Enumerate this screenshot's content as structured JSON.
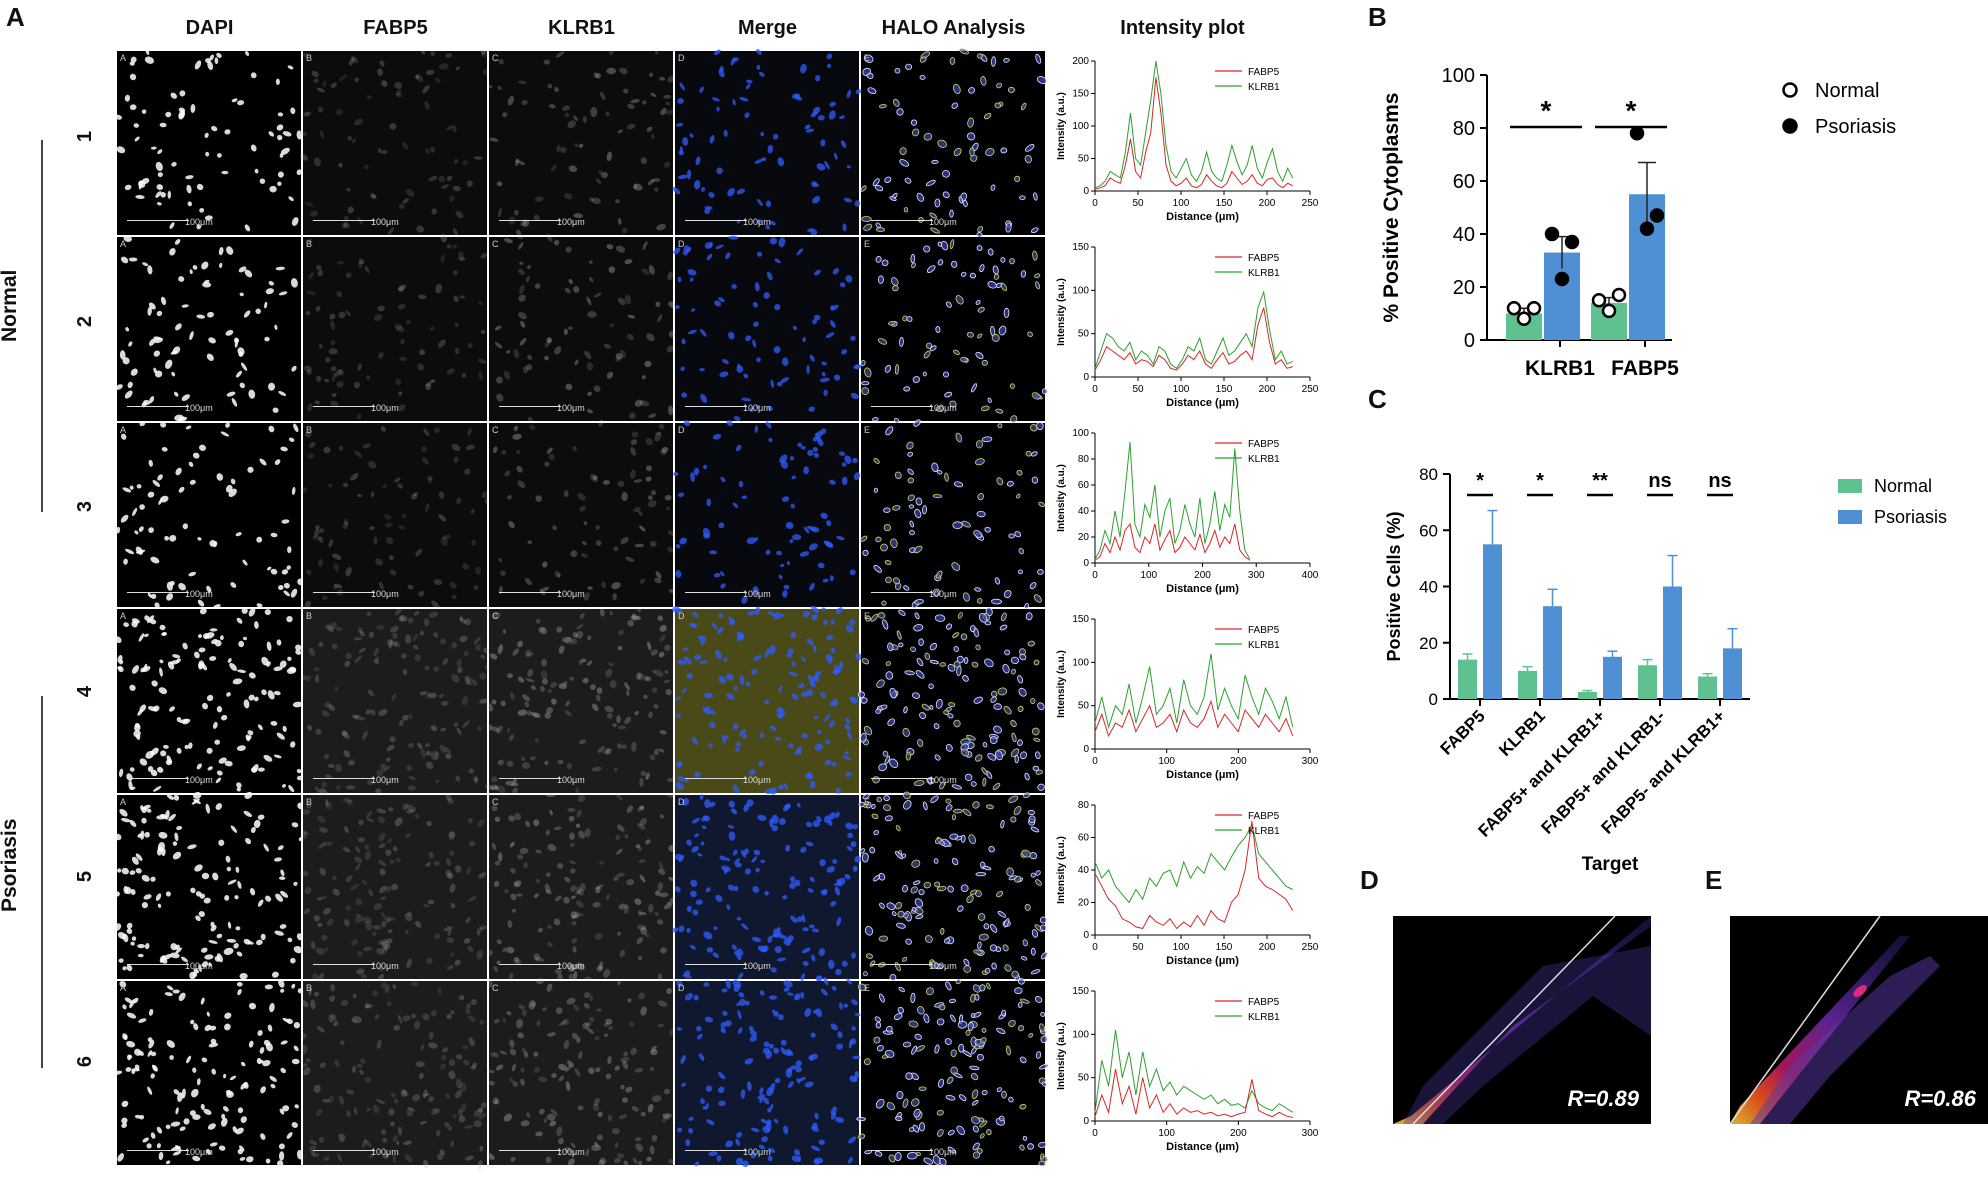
{
  "panel_letters": {
    "a": "A",
    "b": "B",
    "c": "C",
    "d": "D",
    "e": "E"
  },
  "panel_a": {
    "column_headers": [
      "DAPI",
      "FABP5",
      "KLRB1",
      "Merge",
      "HALO Analysis",
      "Intensity plot"
    ],
    "row_labels": [
      "1",
      "2",
      "3",
      "4",
      "5",
      "6"
    ],
    "group_labels": {
      "normal": "Normal",
      "psoriasis": "Psoriasis"
    },
    "tile_corner_letters": [
      "A",
      "B",
      "C",
      "D",
      "E"
    ],
    "scale_bar_label": "100μm",
    "intensity_plots": [
      {
        "ylabel": "Intensity (a.u.)",
        "xlabel": "Distance (μm)",
        "xlim": [
          0,
          250
        ],
        "ylim": [
          0,
          200
        ],
        "xticks": [
          0,
          50,
          100,
          150,
          200,
          250
        ],
        "yticks": [
          0,
          50,
          100,
          150,
          200
        ],
        "series": [
          {
            "name": "FABP5",
            "color": "#d62728",
            "values": [
              3,
              5,
              8,
              20,
              15,
              12,
              40,
              80,
              30,
              20,
              60,
              90,
              175,
              120,
              40,
              15,
              8,
              12,
              20,
              8,
              5,
              10,
              25,
              15,
              8,
              5,
              12,
              30,
              20,
              10,
              15,
              25,
              12,
              8,
              18,
              20,
              10,
              5,
              12,
              8
            ]
          },
          {
            "name": "KLRB1",
            "color": "#2ca02c",
            "values": [
              5,
              8,
              15,
              30,
              25,
              20,
              60,
              120,
              50,
              40,
              90,
              140,
              215,
              150,
              70,
              30,
              20,
              35,
              50,
              25,
              15,
              30,
              60,
              30,
              20,
              15,
              40,
              70,
              45,
              25,
              40,
              70,
              35,
              20,
              45,
              65,
              30,
              15,
              35,
              20
            ]
          }
        ]
      },
      {
        "ylabel": "Intensity (a.u.)",
        "xlabel": "Distance (μm)",
        "xlim": [
          0,
          250
        ],
        "ylim": [
          0,
          150
        ],
        "xticks": [
          0,
          50,
          100,
          150,
          200,
          250
        ],
        "yticks": [
          0,
          50,
          100,
          150
        ],
        "series": [
          {
            "name": "FABP5",
            "color": "#d62728",
            "values": [
              8,
              20,
              35,
              30,
              25,
              20,
              28,
              15,
              20,
              18,
              12,
              25,
              20,
              10,
              8,
              15,
              25,
              20,
              30,
              15,
              10,
              20,
              28,
              15,
              18,
              25,
              30,
              20,
              60,
              80,
              40,
              15,
              20,
              10,
              12
            ]
          },
          {
            "name": "KLRB1",
            "color": "#2ca02c",
            "values": [
              10,
              30,
              50,
              45,
              35,
              30,
              40,
              20,
              30,
              25,
              15,
              35,
              30,
              15,
              10,
              20,
              35,
              30,
              45,
              20,
              15,
              30,
              45,
              25,
              30,
              40,
              50,
              35,
              80,
              98,
              55,
              20,
              30,
              15,
              18
            ]
          }
        ]
      },
      {
        "ylabel": "Intensity (a.u.)",
        "xlabel": "Distance (μm)",
        "xlim": [
          0,
          400
        ],
        "ylim": [
          0,
          100
        ],
        "xticks": [
          0,
          100,
          200,
          300,
          400
        ],
        "yticks": [
          0,
          20,
          40,
          60,
          80,
          100
        ],
        "series": [
          {
            "name": "FABP5",
            "color": "#d62728",
            "values": [
              2,
              5,
              15,
              8,
              20,
              10,
              25,
              30,
              12,
              8,
              20,
              15,
              30,
              10,
              18,
              25,
              8,
              12,
              20,
              15,
              10,
              22,
              8,
              15,
              25,
              12,
              20,
              15,
              30,
              10,
              5,
              2
            ]
          },
          {
            "name": "KLRB1",
            "color": "#2ca02c",
            "values": [
              3,
              10,
              25,
              15,
              40,
              20,
              55,
              93,
              30,
              20,
              45,
              35,
              60,
              20,
              40,
              50,
              15,
              25,
              45,
              30,
              20,
              50,
              15,
              30,
              55,
              25,
              45,
              35,
              88,
              40,
              10,
              3
            ]
          }
        ]
      },
      {
        "ylabel": "Intensity (a.u.)",
        "xlabel": "Distance (μm)",
        "xlim": [
          0,
          300
        ],
        "ylim": [
          0,
          150
        ],
        "xticks": [
          0,
          100,
          200,
          300
        ],
        "yticks": [
          0,
          50,
          100,
          150
        ],
        "series": [
          {
            "name": "FABP5",
            "color": "#d62728",
            "values": [
              20,
              40,
              15,
              30,
              25,
              45,
              20,
              35,
              50,
              25,
              30,
              40,
              20,
              45,
              30,
              25,
              35,
              55,
              25,
              40,
              30,
              20,
              45,
              35,
              25,
              40,
              30,
              20,
              35,
              15
            ]
          },
          {
            "name": "KLRB1",
            "color": "#2ca02c",
            "values": [
              30,
              60,
              25,
              50,
              40,
              75,
              30,
              60,
              95,
              40,
              50,
              70,
              30,
              80,
              50,
              40,
              60,
              110,
              45,
              70,
              50,
              35,
              85,
              60,
              40,
              70,
              55,
              35,
              60,
              25
            ]
          }
        ]
      },
      {
        "ylabel": "Intensity (a.u.)",
        "xlabel": "Distance (μm)",
        "xlim": [
          0,
          250
        ],
        "ylim": [
          0,
          80
        ],
        "xticks": [
          0,
          50,
          100,
          150,
          200,
          250
        ],
        "yticks": [
          0,
          20,
          40,
          60,
          80
        ],
        "series": [
          {
            "name": "FABP5",
            "color": "#d62728",
            "values": [
              38,
              30,
              22,
              18,
              10,
              8,
              5,
              4,
              12,
              8,
              6,
              10,
              4,
              8,
              5,
              12,
              6,
              15,
              10,
              8,
              20,
              25,
              40,
              70,
              35,
              30,
              28,
              25,
              22,
              15
            ]
          },
          {
            "name": "KLRB1",
            "color": "#2ca02c",
            "values": [
              45,
              35,
              40,
              30,
              25,
              20,
              28,
              22,
              35,
              30,
              38,
              40,
              30,
              45,
              35,
              42,
              38,
              50,
              45,
              40,
              48,
              55,
              60,
              68,
              50,
              45,
              40,
              35,
              30,
              28
            ]
          }
        ]
      },
      {
        "ylabel": "Intensity (a.u.)",
        "xlabel": "Distance (μm)",
        "xlim": [
          0,
          300
        ],
        "ylim": [
          0,
          150
        ],
        "xticks": [
          0,
          100,
          200,
          300
        ],
        "yticks": [
          0,
          50,
          100,
          150
        ],
        "series": [
          {
            "name": "FABP5",
            "color": "#d62728",
            "values": [
              5,
              30,
              10,
              60,
              20,
              40,
              8,
              50,
              15,
              30,
              10,
              20,
              8,
              15,
              10,
              12,
              8,
              10,
              6,
              8,
              5,
              8,
              10,
              48,
              12,
              8,
              5,
              10,
              6,
              4
            ]
          },
          {
            "name": "KLRB1",
            "color": "#2ca02c",
            "values": [
              10,
              70,
              40,
              105,
              50,
              80,
              30,
              80,
              40,
              60,
              35,
              45,
              30,
              40,
              35,
              30,
              25,
              30,
              20,
              25,
              18,
              20,
              15,
              35,
              20,
              15,
              12,
              20,
              15,
              10
            ]
          }
        ]
      }
    ]
  },
  "chart_data": [
    {
      "type": "bar",
      "panel": "B",
      "categories": [
        "KLRB1",
        "FABP5"
      ],
      "ylabel": "% Positive Cytoplasms",
      "ylim": [
        0,
        100
      ],
      "yticks": [
        0,
        20,
        40,
        60,
        80,
        100
      ],
      "legend": {
        "position": "top-right",
        "entries": [
          "Normal",
          "Psoriasis"
        ]
      },
      "series": [
        {
          "name": "Normal",
          "color": "#5fc190",
          "values": [
            10,
            14
          ],
          "errors": [
            2,
            2
          ],
          "points": [
            [
              12,
              8,
              12
            ],
            [
              15,
              11,
              17
            ]
          ]
        },
        {
          "name": "Psoriasis",
          "color": "#4f8fd4",
          "values": [
            33,
            55
          ],
          "errors": [
            6,
            12
          ],
          "points": [
            [
              40,
              23,
              37
            ],
            [
              78,
              42,
              47
            ]
          ]
        }
      ],
      "significance": [
        "*",
        "*"
      ]
    },
    {
      "type": "bar",
      "panel": "C",
      "categories": [
        "FABP5",
        "KLRB1",
        "FABP5+ and KLRB1+",
        "FABP5+ and KLRB1-",
        "FABP5- and KLRB1+"
      ],
      "xlabel": "Target",
      "ylabel": "Positive Cells (%)",
      "ylim": [
        0,
        80
      ],
      "yticks": [
        0,
        20,
        40,
        60,
        80
      ],
      "legend": {
        "position": "right",
        "entries": [
          "Normal",
          "Psoriasis"
        ]
      },
      "series": [
        {
          "name": "Normal",
          "color": "#5fc190",
          "values": [
            14,
            10,
            2.5,
            12,
            8
          ],
          "errors": [
            2,
            1.5,
            0.5,
            2,
            1
          ]
        },
        {
          "name": "Psoriasis",
          "color": "#4f8fd4",
          "values": [
            55,
            33,
            15,
            40,
            18
          ],
          "errors": [
            12,
            6,
            2,
            11,
            7
          ]
        }
      ],
      "significance": [
        "*",
        "*",
        "**",
        "ns",
        "ns"
      ]
    }
  ],
  "panel_d": {
    "label": "R=0.89"
  },
  "panel_e": {
    "label": "R=0.86"
  }
}
